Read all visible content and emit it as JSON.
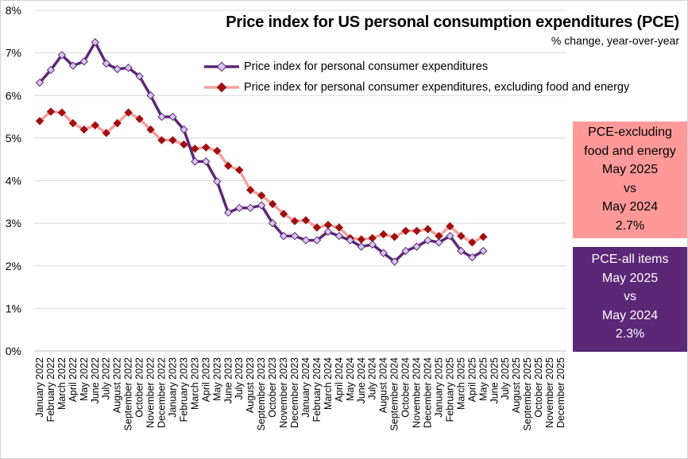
{
  "title": "Price index for US personal consumption expenditures (PCE)",
  "subtitle": "% change, year-over-year",
  "colors": {
    "pce": "#5c2776",
    "pce_marker_fill": "#d8c8f0",
    "core": "#f4a0a0",
    "core_marker": "#a01010",
    "note_core_bg": "#ff9999",
    "note_all_bg": "#5c2776"
  },
  "notes": {
    "core": [
      "PCE-excluding",
      "food and energy",
      "May 2025",
      "vs",
      "May 2024",
      "2.7%"
    ],
    "all": [
      "PCE-all items",
      "May 2025",
      "vs",
      "May 2024",
      "2.3%"
    ]
  },
  "chart_data": {
    "type": "line",
    "title": "Price index for US personal consumption expenditures (PCE)",
    "subtitle": "% change, year-over-year",
    "categories": [
      "January 2022",
      "February 2022",
      "March 2022",
      "April 2022",
      "May 2022",
      "June 2022",
      "July 2022",
      "August 2022",
      "September 2022",
      "October 2022",
      "November 2022",
      "December 2022",
      "January 2023",
      "February 2023",
      "March 2023",
      "April 2023",
      "May 2023",
      "June 2023",
      "July 2023",
      "August 2023",
      "September 2023",
      "October 2023",
      "November 2023",
      "December 2023",
      "January 2024",
      "February 2024",
      "March 2024",
      "April 2024",
      "May 2024",
      "June 2024",
      "July 2024",
      "August 2024",
      "September 2024",
      "October 2024",
      "November 2024",
      "December 2024",
      "January 2025",
      "February 2025",
      "March 2025",
      "April 2025",
      "May 2025",
      "June 2025",
      "July 2025",
      "August 2025",
      "September 2025",
      "October 2025",
      "November 2025",
      "December 2025"
    ],
    "y_tick_labels": [
      "0%",
      "1%",
      "2%",
      "3%",
      "4%",
      "5%",
      "6%",
      "7%",
      "8%"
    ],
    "ylim": [
      0,
      8
    ],
    "grid": true,
    "legend_position": "top",
    "series": [
      {
        "name": "Price index for personal consumer expenditures",
        "values": [
          6.3,
          6.6,
          6.95,
          6.7,
          6.8,
          7.25,
          6.75,
          6.62,
          6.65,
          6.45,
          6.0,
          5.5,
          5.5,
          5.2,
          4.45,
          4.45,
          3.98,
          3.25,
          3.36,
          3.36,
          3.42,
          3.0,
          2.7,
          2.7,
          2.6,
          2.6,
          2.8,
          2.7,
          2.6,
          2.45,
          2.5,
          2.3,
          2.1,
          2.35,
          2.45,
          2.6,
          2.55,
          2.7,
          2.35,
          2.2,
          2.35,
          null,
          null,
          null,
          null,
          null,
          null,
          null
        ]
      },
      {
        "name": "Price index for personal consumer expenditures, excluding food and energy",
        "values": [
          5.4,
          5.62,
          5.6,
          5.35,
          5.2,
          5.3,
          5.12,
          5.35,
          5.6,
          5.45,
          5.2,
          4.95,
          4.95,
          4.85,
          4.75,
          4.78,
          4.7,
          4.35,
          4.25,
          3.78,
          3.65,
          3.45,
          3.22,
          3.05,
          3.07,
          2.9,
          2.96,
          2.9,
          2.65,
          2.62,
          2.65,
          2.74,
          2.68,
          2.82,
          2.82,
          2.86,
          2.7,
          2.93,
          2.7,
          2.55,
          2.68,
          null,
          null,
          null,
          null,
          null,
          null,
          null
        ]
      }
    ]
  }
}
